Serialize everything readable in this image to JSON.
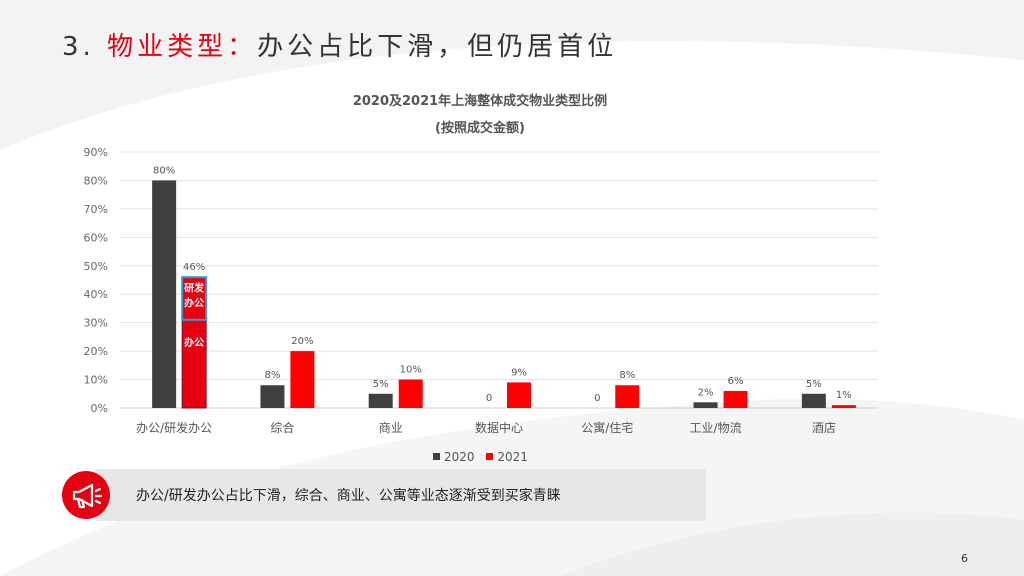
{
  "slide": {
    "title_number": "3.",
    "title_accent": "物业类型：",
    "title_rest": "办公占比下滑，但仍居首位",
    "page_number": "6"
  },
  "chart_data": {
    "type": "bar",
    "title": "2020及2021年上海整体成交物业类型比例",
    "subtitle": "(按照成交金额)",
    "categories": [
      "办公/研发办公",
      "综合",
      "商业",
      "数据中心",
      "公寓/住宅",
      "工业/物流",
      "酒店"
    ],
    "series": [
      {
        "name": "2020",
        "color": "#404040",
        "values": [
          80,
          8,
          5,
          0,
          0,
          2,
          5
        ],
        "labels": [
          "80%",
          "8%",
          "5%",
          "0",
          "0",
          "2%",
          "5%"
        ]
      },
      {
        "name": "2021",
        "color": "#ff0000",
        "values": [
          46,
          20,
          10,
          9,
          8,
          6,
          1
        ],
        "labels": [
          "46%",
          "20%",
          "10%",
          "9%",
          "8%",
          "6%",
          "1%"
        ]
      }
    ],
    "yticks": [
      "0%",
      "10%",
      "20%",
      "30%",
      "40%",
      "50%",
      "60%",
      "70%",
      "80%",
      "90%"
    ],
    "ylim": [
      0,
      90
    ],
    "grid": true,
    "legend_position": "bottom",
    "stacked_breakdown": {
      "category": "办公/研发办公",
      "series": "2021",
      "segments": [
        {
          "label": "办公",
          "value": 31,
          "color": "#e60012"
        },
        {
          "label": "研发办公",
          "value": 15,
          "color": "#e60012",
          "border": "#2a9fd6"
        }
      ]
    }
  },
  "banner": {
    "text": "办公/研发办公占比下滑，综合、商业、公寓等业态逐渐受到买家青睐",
    "icon": "megaphone-icon"
  }
}
